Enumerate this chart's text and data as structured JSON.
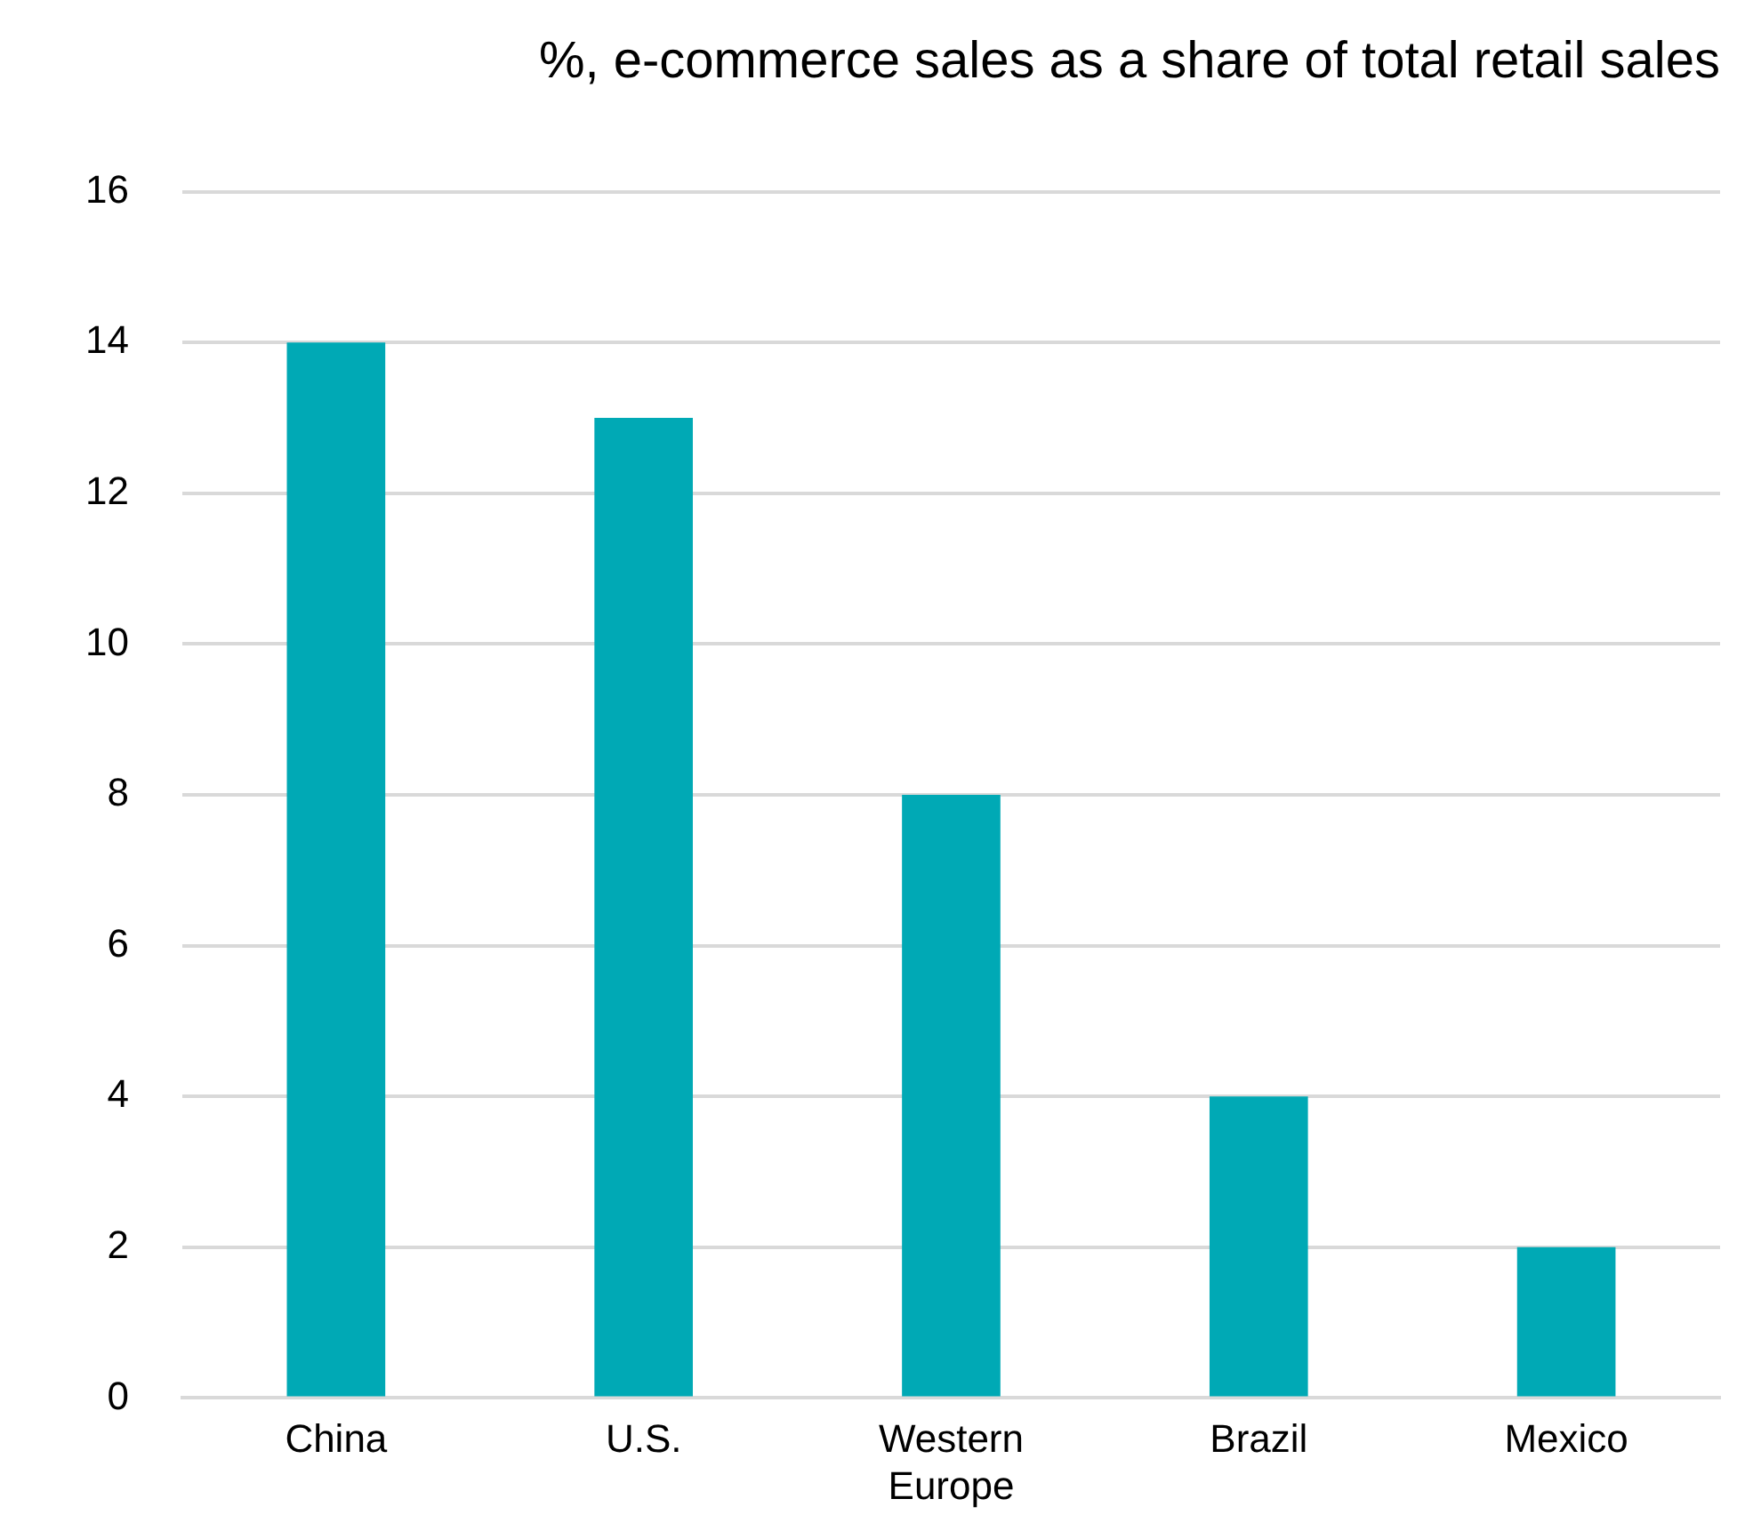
{
  "chart_data": {
    "type": "bar",
    "title": "%, e-commerce sales as a share of total retail sales",
    "categories": [
      "China",
      "U.S.",
      "Western Europe",
      "Brazil",
      "Mexico"
    ],
    "values": [
      14,
      13,
      8,
      4,
      2
    ],
    "color": "#00a9b5",
    "ylim": [
      0,
      16
    ],
    "yticks": [
      0,
      2,
      4,
      6,
      8,
      10,
      12,
      14,
      16
    ],
    "grid": "y",
    "legend": false
  }
}
